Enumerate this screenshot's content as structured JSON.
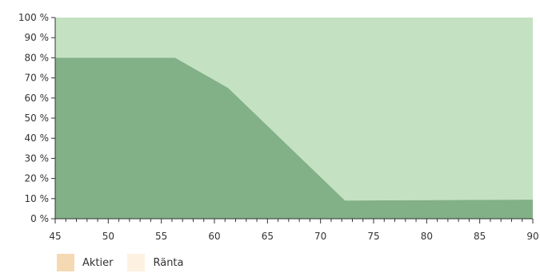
{
  "chart_data": {
    "type": "area",
    "title": "",
    "xlabel": "",
    "ylabel": "",
    "x_ticks": [
      "45",
      "50",
      "55",
      "60",
      "65",
      "70",
      "75",
      "80",
      "85",
      "90"
    ],
    "y_ticks": [
      "0 %",
      "10 %",
      "20 %",
      "30 %",
      "40 %",
      "50 %",
      "60 %",
      "70 %",
      "80 %",
      "90 %",
      "100 %"
    ],
    "xlim": [
      45,
      90
    ],
    "ylim": [
      0,
      100
    ],
    "stacked": true,
    "grid": false,
    "legend_position": "bottom-left",
    "series": [
      {
        "name": "Aktier",
        "color": "#82b087",
        "legend_color": "#f5d9b3",
        "points": [
          [
            45,
            80
          ],
          [
            56.3,
            80
          ],
          [
            61.3,
            65
          ],
          [
            72.3,
            9
          ],
          [
            90,
            9.5
          ]
        ]
      },
      {
        "name": "Ränta",
        "color": "#c4e2c1",
        "legend_color": "#fdf1e1",
        "points": [
          [
            45,
            20
          ],
          [
            56.3,
            20
          ],
          [
            61.3,
            35
          ],
          [
            72.3,
            91
          ],
          [
            90,
            90.5
          ]
        ]
      }
    ]
  }
}
